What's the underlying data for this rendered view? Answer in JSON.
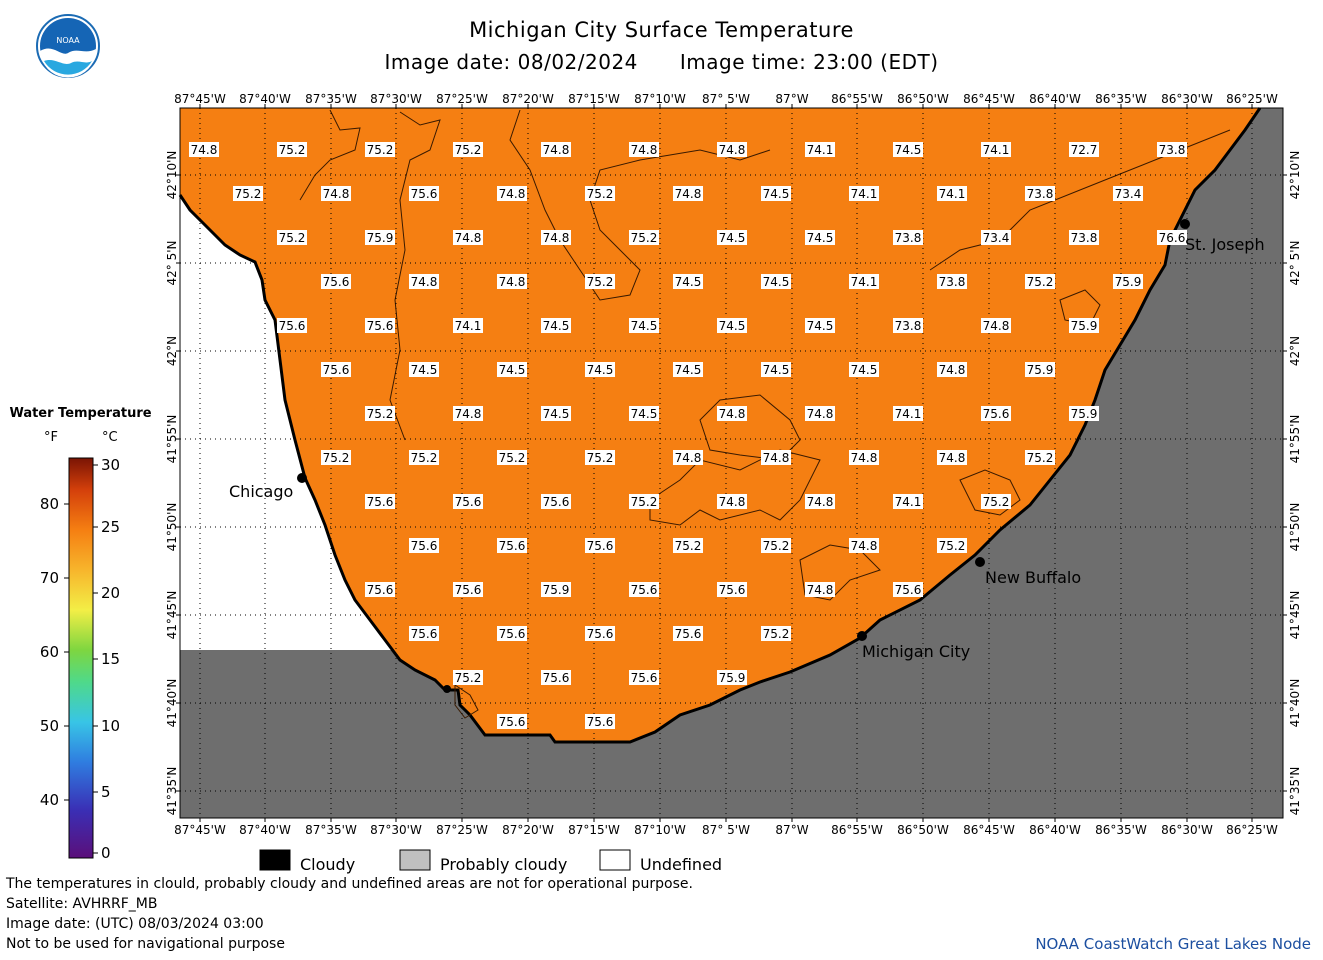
{
  "title": "Michigan City Surface Temperature",
  "image_date_label": "Image date: 08/02/2024",
  "image_time_label": "Image time: 23:00 (EDT)",
  "logo_text": "NOAA",
  "longitude_ticks": [
    "87°45'W",
    "87°40'W",
    "87°35'W",
    "87°30'W",
    "87°25'W",
    "87°20'W",
    "87°15'W",
    "87°10'W",
    "87° 5'W",
    "87°W",
    "86°55'W",
    "86°50'W",
    "86°45'W",
    "86°40'W",
    "86°35'W",
    "86°30'W",
    "86°25'W"
  ],
  "latitude_ticks": [
    "42°10'N",
    "42° 5'N",
    "42°N",
    "41°55'N",
    "41°50'N",
    "41°45'N",
    "41°40'N",
    "41°35'N"
  ],
  "temperatures": [
    [
      "74.8",
      "75.2",
      "75.2",
      "75.2",
      "74.8",
      "74.8",
      "74.8",
      "74.1",
      "74.5",
      "74.1",
      "72.7",
      "73.8"
    ],
    [
      "75.2",
      "74.8",
      "75.6",
      "74.8",
      "75.2",
      "74.8",
      "74.5",
      "74.1",
      "74.1",
      "73.8",
      "73.4"
    ],
    [
      "75.2",
      "75.9",
      "74.8",
      "74.8",
      "75.2",
      "74.5",
      "74.5",
      "73.8",
      "73.4",
      "73.8",
      "76.6"
    ],
    [
      "75.6",
      "74.8",
      "74.8",
      "75.2",
      "74.5",
      "74.5",
      "74.1",
      "73.8",
      "75.2",
      "75.9"
    ],
    [
      "75.6",
      "75.6",
      "74.1",
      "74.5",
      "74.5",
      "74.5",
      "74.5",
      "73.8",
      "74.8",
      "75.9"
    ],
    [
      "75.6",
      "74.5",
      "74.5",
      "74.5",
      "74.5",
      "74.5",
      "74.5",
      "74.8",
      "75.9"
    ],
    [
      "75.2",
      "74.8",
      "74.5",
      "74.5",
      "74.8",
      "74.8",
      "74.1",
      "75.6",
      "75.9"
    ],
    [
      "75.2",
      "75.2",
      "75.2",
      "75.2",
      "74.8",
      "74.8",
      "74.8",
      "74.8",
      "75.2"
    ],
    [
      "75.6",
      "75.6",
      "75.6",
      "75.2",
      "74.8",
      "74.8",
      "74.1",
      "75.2"
    ],
    [
      "75.6",
      "75.6",
      "75.6",
      "75.2",
      "75.2",
      "74.8",
      "75.2"
    ],
    [
      "75.6",
      "75.6",
      "75.9",
      "75.6",
      "75.6",
      "74.8",
      "75.6"
    ],
    [
      "75.6",
      "75.6",
      "75.6",
      "75.6",
      "75.2"
    ],
    [
      "75.2",
      "75.6",
      "75.6",
      "75.9"
    ],
    [
      "75.6",
      "75.6"
    ]
  ],
  "cities": {
    "chicago": "Chicago",
    "st_joseph": "St. Joseph",
    "new_buffalo": "New Buffalo",
    "michigan_city": "Michigan City"
  },
  "legend": {
    "title": "Water Temperature",
    "f_label": "°F",
    "c_label": "°C",
    "f_ticks": [
      "80",
      "70",
      "60",
      "50",
      "40"
    ],
    "c_ticks": [
      "30",
      "25",
      "20",
      "15",
      "10",
      "5",
      "0"
    ]
  },
  "key": {
    "cloudy": "Cloudy",
    "probably_cloudy": "Probably cloudy",
    "undefined": "Undefined"
  },
  "footer": {
    "disclaimer": "The temperatures in clould, probably cloudy and undefined areas are not for operational purpose.",
    "satellite": "Satellite: AVHRRF_MB",
    "utc_date": "Image date: (UTC) 08/03/2024  03:00",
    "navigation": "Not to be used for navigational purpose",
    "credit": "NOAA CoastWatch Great Lakes Node"
  },
  "colors": {
    "water": "#f57f12",
    "land": "#6e6e6e",
    "undefined": "#ffffff",
    "probably_cloudy": "#c0c0c0",
    "cloudy": "#000000",
    "credit": "#1c4fa0"
  }
}
